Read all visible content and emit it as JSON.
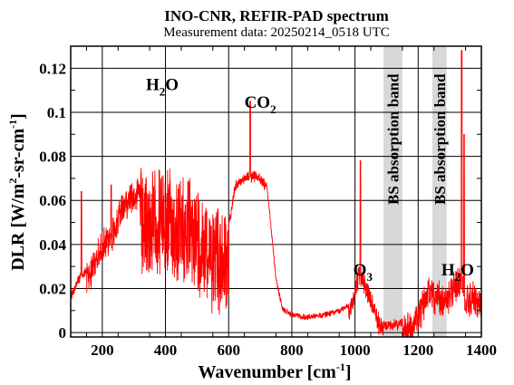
{
  "title": "INO-CNR, REFIR-PAD spectrum",
  "subtitle": "Measurement data: 20250214_0518 UTC",
  "colors": {
    "series": "#ff0000",
    "band": "#d8d8d8",
    "axis": "#000000",
    "background": "#ffffff"
  },
  "chart_data": {
    "type": "line",
    "xlabel": "Wavenumber [cm",
    "xlabel_sup": "-1",
    "xlabel_end": "]",
    "ylabel": "DLR [W/m",
    "ylabel_sup1": "2",
    "ylabel_mid": "-sr-cm",
    "ylabel_sup2": "-1",
    "ylabel_end": "]",
    "xlim": [
      100,
      1400
    ],
    "ylim": [
      -0.002,
      0.13
    ],
    "xticks": [
      200,
      400,
      600,
      800,
      1000,
      1200,
      1400
    ],
    "yticks": [
      0,
      0.02,
      0.04,
      0.06,
      0.08,
      0.1,
      0.12
    ],
    "ytick_labels": [
      "0",
      "0.02",
      "0.04",
      "0.06",
      "0.08",
      "0.1",
      "0.12"
    ],
    "grid": true,
    "series": [
      {
        "x": [
          100,
          120,
          150,
          180,
          200,
          230,
          260,
          290,
          320,
          350,
          380,
          400,
          450,
          500,
          550,
          600,
          620,
          650,
          680,
          700,
          720,
          730,
          750,
          770,
          800,
          850,
          900,
          950,
          980,
          1000,
          1010,
          1020,
          1030,
          1050,
          1070,
          1085,
          1150,
          1200,
          1230,
          1245,
          1290,
          1310,
          1330,
          1340,
          1350,
          1370,
          1400
        ],
        "y": [
          0.018,
          0.025,
          0.03,
          0.038,
          0.045,
          0.05,
          0.062,
          0.068,
          0.07,
          0.07,
          0.072,
          0.07,
          0.068,
          0.064,
          0.057,
          0.05,
          0.068,
          0.072,
          0.073,
          0.072,
          0.068,
          0.055,
          0.025,
          0.012,
          0.009,
          0.008,
          0.009,
          0.011,
          0.013,
          0.022,
          0.028,
          0.03,
          0.026,
          0.018,
          0.01,
          0.005,
          0.006,
          0.012,
          0.024,
          0.022,
          0.021,
          0.025,
          0.03,
          0.028,
          0.02,
          0.022,
          0.018
        ]
      }
    ],
    "annotations": [
      {
        "text": "H",
        "sub": "2",
        "text2": "O",
        "x": 390,
        "y": 0.11
      },
      {
        "text": "CO",
        "sub": "2",
        "text2": "",
        "x": 700,
        "y": 0.102
      },
      {
        "text": "O",
        "sub": "3",
        "text2": "",
        "x": 1025,
        "y": 0.026
      },
      {
        "text": "H",
        "sub": "2",
        "text2": "O",
        "x": 1325,
        "y": 0.026
      }
    ],
    "bands": [
      {
        "label": "BS absorption band",
        "x0": 1090,
        "x1": 1150
      },
      {
        "label": "BS absorption band",
        "x0": 1245,
        "x1": 1290
      }
    ]
  }
}
